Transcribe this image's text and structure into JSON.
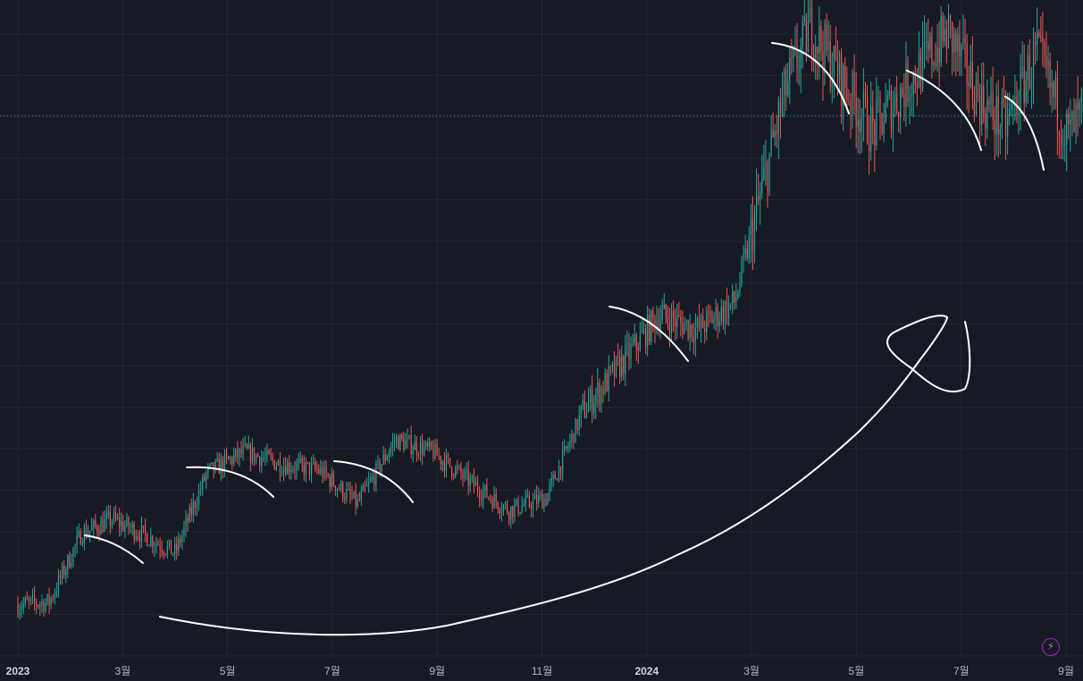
{
  "chart_data": {
    "type": "candlestick",
    "title": "",
    "xlabel": "",
    "ylabel": "",
    "x_range": [
      "2023-01-01",
      "2024-08-31"
    ],
    "y_range": [
      0,
      100
    ],
    "grid": true,
    "x_ticks": [
      {
        "date": "2023-01-01",
        "label": "2023",
        "bold": true
      },
      {
        "date": "2023-03-01",
        "label": "3월",
        "bold": false
      },
      {
        "date": "2023-05-01",
        "label": "5월",
        "bold": false
      },
      {
        "date": "2023-07-01",
        "label": "7월",
        "bold": false
      },
      {
        "date": "2023-09-01",
        "label": "9월",
        "bold": false
      },
      {
        "date": "2023-11-01",
        "label": "11월",
        "bold": false
      },
      {
        "date": "2024-01-01",
        "label": "2024",
        "bold": true
      },
      {
        "date": "2024-03-01",
        "label": "3월",
        "bold": false
      },
      {
        "date": "2024-05-01",
        "label": "5월",
        "bold": false
      },
      {
        "date": "2024-07-01",
        "label": "7월",
        "bold": false
      },
      {
        "date": "2024-09-01",
        "label": "9월",
        "bold": false
      }
    ],
    "trend_path": [
      [
        2023.0,
        0.5
      ],
      [
        2023.05,
        1.0
      ],
      [
        2023.1,
        12.0
      ],
      [
        2023.15,
        14.5
      ],
      [
        2023.2,
        12.0
      ],
      [
        2023.25,
        9.0
      ],
      [
        2023.3,
        22.0
      ],
      [
        2023.36,
        25.5
      ],
      [
        2023.42,
        23.5
      ],
      [
        2023.48,
        22.5
      ],
      [
        2023.54,
        17.0
      ],
      [
        2023.6,
        27.5
      ],
      [
        2023.66,
        25.5
      ],
      [
        2023.72,
        20.5
      ],
      [
        2023.78,
        16.0
      ],
      [
        2023.84,
        18.0
      ],
      [
        2023.9,
        32.5
      ],
      [
        2023.96,
        40.0
      ],
      [
        2024.02,
        48.0
      ],
      [
        2024.08,
        45.5
      ],
      [
        2024.14,
        50.0
      ],
      [
        2024.18,
        67.0
      ],
      [
        2024.22,
        84.5
      ],
      [
        2024.26,
        95.0
      ],
      [
        2024.32,
        84.5
      ],
      [
        2024.36,
        78.0
      ],
      [
        2024.42,
        86.5
      ],
      [
        2024.48,
        94.0
      ],
      [
        2024.53,
        83.0
      ],
      [
        2024.57,
        78.5
      ],
      [
        2024.62,
        91.0
      ],
      [
        2024.67,
        77.0
      ],
      [
        2024.7,
        82.0
      ]
    ],
    "current_price_level": 80.5,
    "annotations": [
      {
        "type": "freehand",
        "description": "down-curve 2023-02/03"
      },
      {
        "type": "freehand",
        "description": "down-curve 2023-04/06"
      },
      {
        "type": "freehand",
        "description": "down-curve 2023-07/08"
      },
      {
        "type": "freehand",
        "description": "down-curve 2023-12/2024-02"
      },
      {
        "type": "freehand",
        "description": "down-curve 2024-03/04"
      },
      {
        "type": "freehand",
        "description": "down-curve 2024-06/07"
      },
      {
        "type": "freehand",
        "description": "down-curve 2024-07/08"
      },
      {
        "type": "freehand",
        "description": "large cup curve with loop 2023-03 to 2024-07"
      }
    ]
  },
  "colors": {
    "background": "#161a25",
    "grid": "#232735",
    "up": "#26a69a",
    "down": "#ef5350",
    "price_line": "#26a69a",
    "drawing": "#ffffff"
  },
  "icons": {
    "flash": "flash-icon"
  },
  "labels": {
    "flash_symbol": "⚡"
  }
}
